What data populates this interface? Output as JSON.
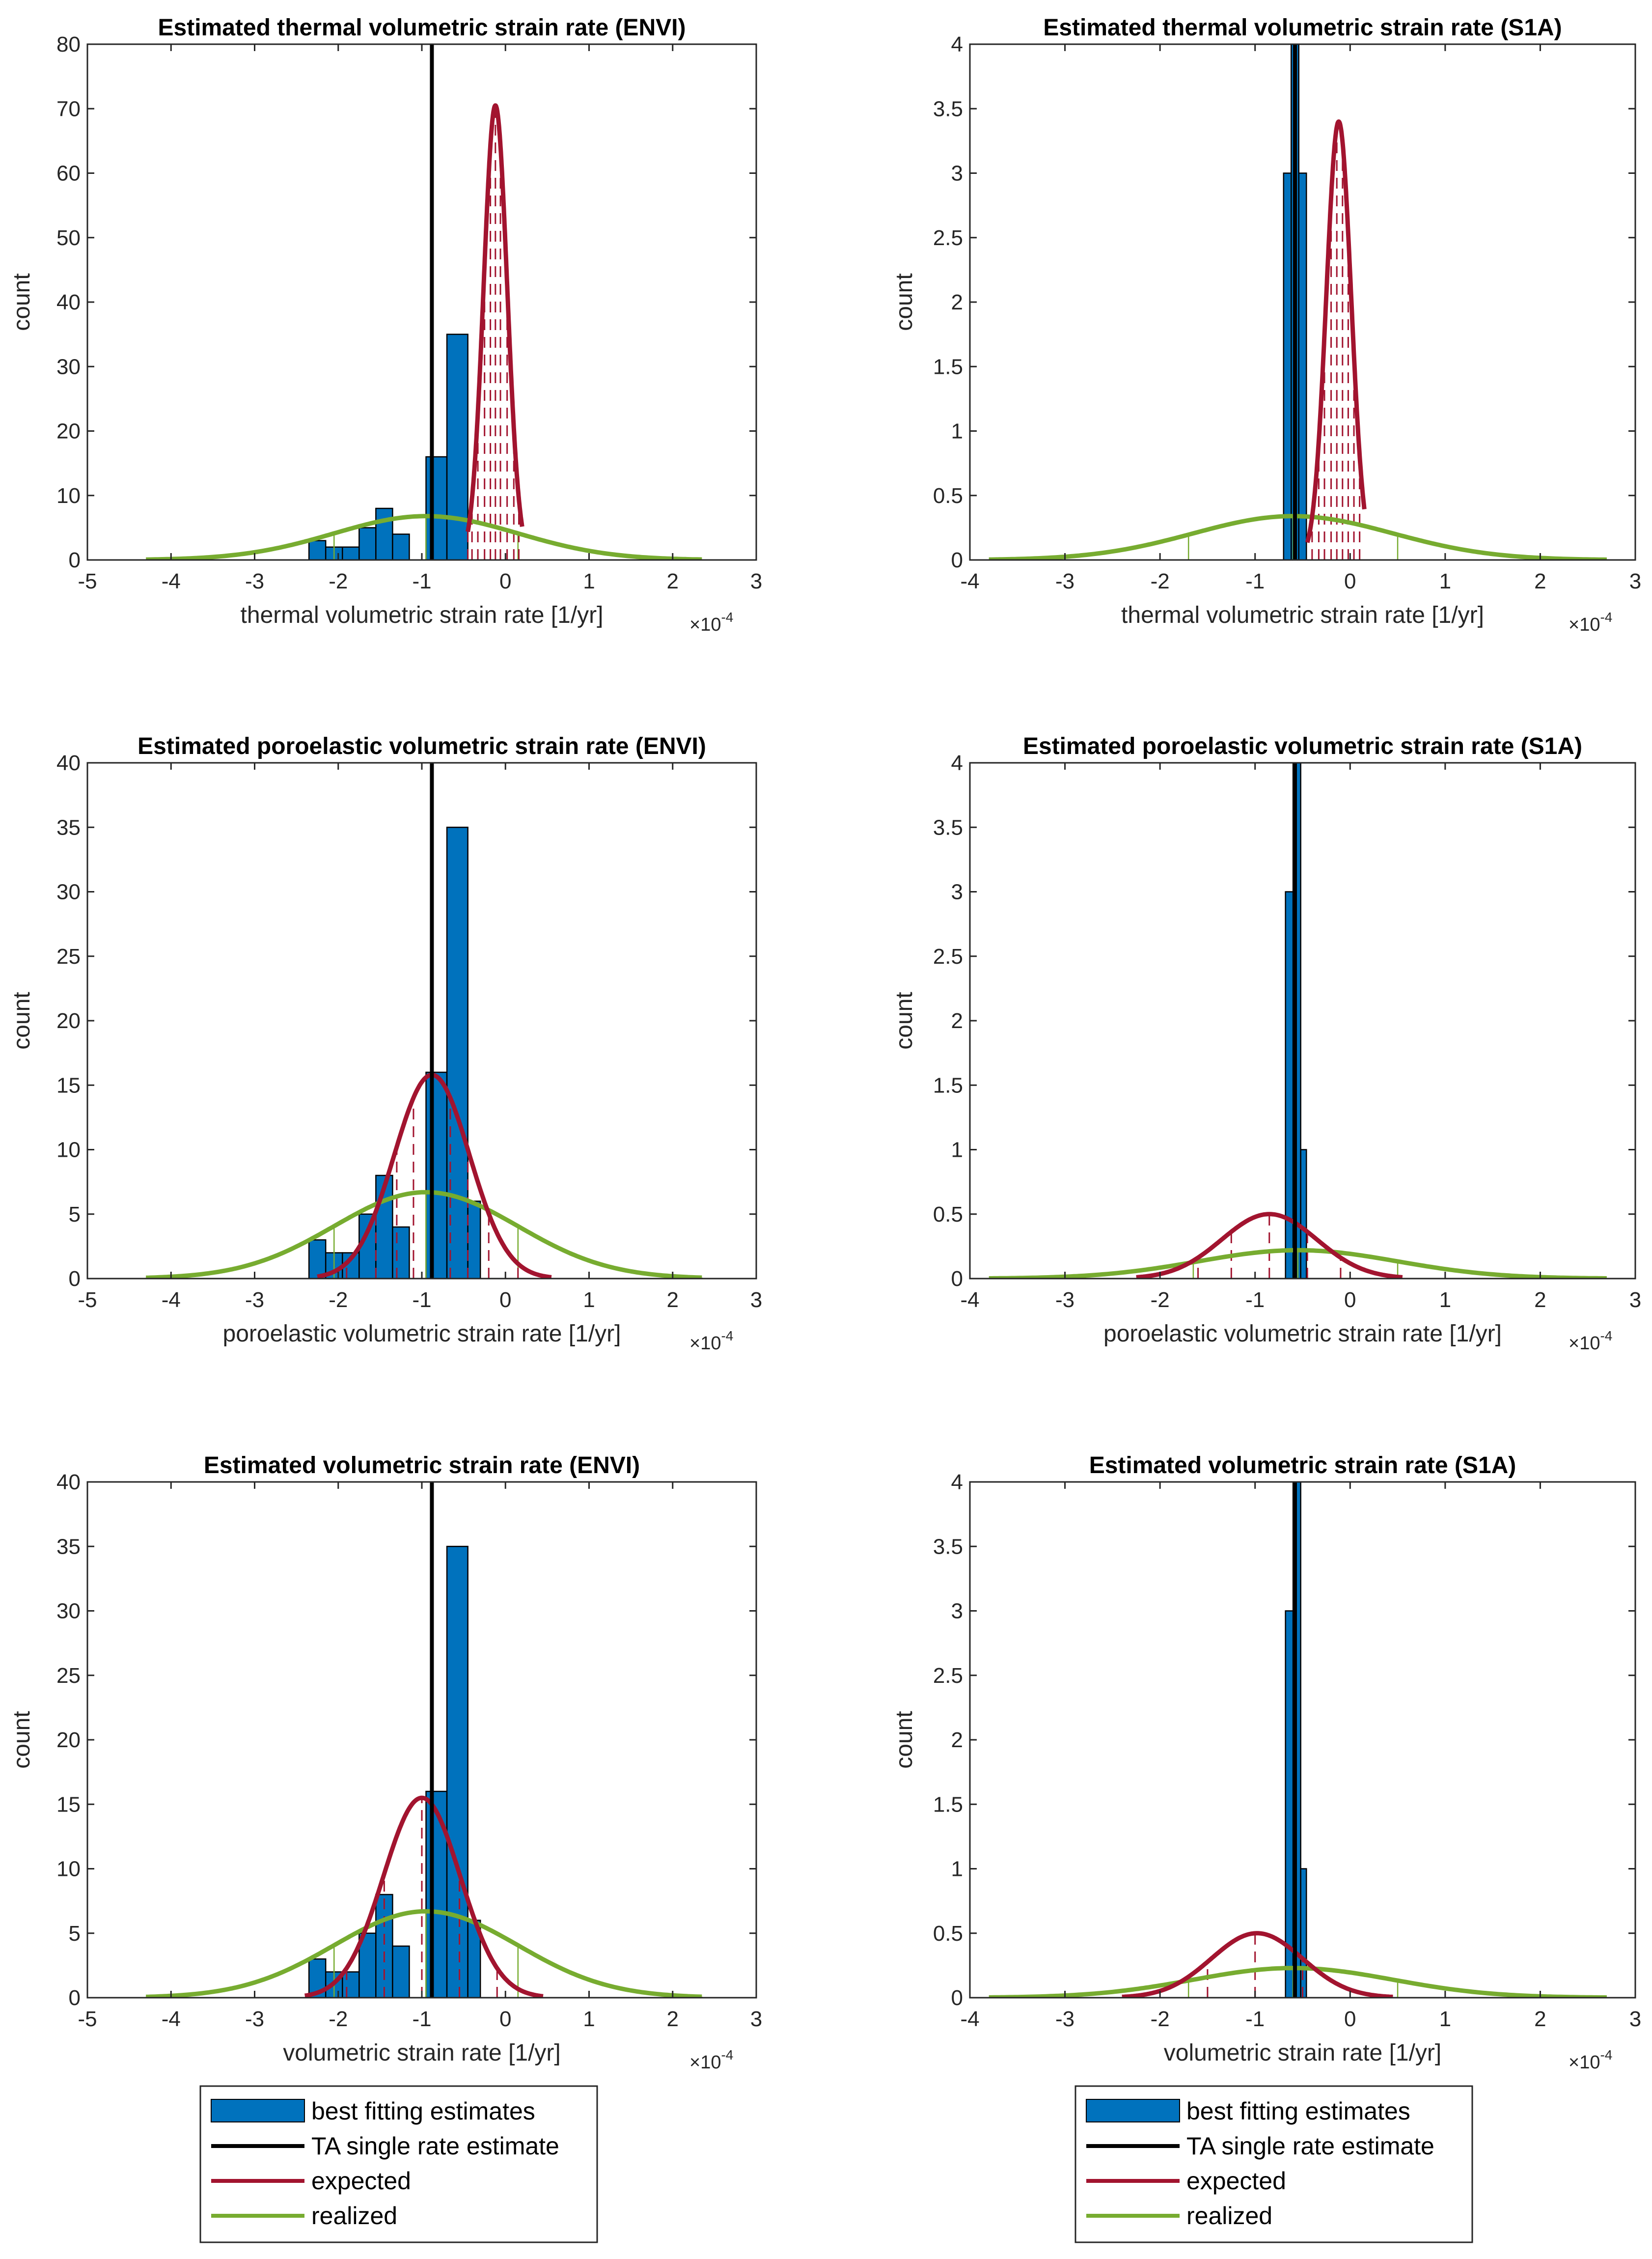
{
  "colors": {
    "histogram": "#0072BD",
    "ta_line": "#000000",
    "expected": "#A2142F",
    "realized": "#77AC30",
    "axis": "#262626"
  },
  "legend_left": {
    "items": [
      {
        "label": "best fitting estimates",
        "kind": "patch"
      },
      {
        "label": "TA single rate estimate",
        "kind": "ta"
      },
      {
        "label": "expected",
        "kind": "expected"
      },
      {
        "label": "realized",
        "kind": "realized"
      }
    ]
  },
  "legend_right": {
    "items": [
      {
        "label": "best fitting estimates",
        "kind": "patch"
      },
      {
        "label": "TA single rate estimate",
        "kind": "ta"
      },
      {
        "label": "expected",
        "kind": "expected"
      },
      {
        "label": "realized",
        "kind": "realized"
      }
    ]
  },
  "chart_data": [
    {
      "type": "bar",
      "title": "Estimated thermal volumetric strain rate (ENVI)",
      "xlabel": "thermal volumetric strain rate [1/yr]",
      "ylabel": "count",
      "x_multiplier": "×10",
      "x_exponent": "-4",
      "xlim": [
        -5,
        3
      ],
      "ylim": [
        0,
        80
      ],
      "xticks": [
        -5,
        -4,
        -3,
        -2,
        -1,
        0,
        1,
        2,
        3
      ],
      "yticks": [
        0,
        10,
        20,
        30,
        40,
        50,
        60,
        70,
        80
      ],
      "bins": [
        {
          "x0": -2.35,
          "x1": -2.15,
          "count": 3
        },
        {
          "x0": -2.15,
          "x1": -1.95,
          "count": 2
        },
        {
          "x0": -1.95,
          "x1": -1.75,
          "count": 2
        },
        {
          "x0": -1.75,
          "x1": -1.55,
          "count": 5
        },
        {
          "x0": -1.55,
          "x1": -1.35,
          "count": 8
        },
        {
          "x0": -1.35,
          "x1": -1.15,
          "count": 4
        },
        {
          "x0": -1.15,
          "x1": -0.95,
          "count": 0
        },
        {
          "x0": -0.95,
          "x1": -0.7,
          "count": 16
        },
        {
          "x0": -0.7,
          "x1": -0.45,
          "count": 35
        }
      ],
      "ta_estimate": -0.88,
      "expected": {
        "mean": -0.12,
        "std": 0.14,
        "peak": 70.5,
        "range": [
          -0.45,
          0.2
        ],
        "ticks": [
          -0.45,
          -0.4,
          -0.33,
          -0.25,
          -0.18,
          -0.12,
          -0.06,
          0.02,
          0.1,
          0.16
        ]
      },
      "realized": {
        "mean": -0.95,
        "std": 1.1,
        "peak": 6.8,
        "range": [
          -4.3,
          2.35
        ],
        "ticks": [
          -4.3,
          -2.05,
          -0.95,
          0.15,
          2.35
        ]
      }
    },
    {
      "type": "bar",
      "title": "Estimated thermal volumetric strain rate (S1A)",
      "xlabel": "thermal volumetric strain rate [1/yr]",
      "ylabel": "count",
      "x_multiplier": "×10",
      "x_exponent": "-4",
      "xlim": [
        -4,
        3
      ],
      "ylim": [
        0,
        4
      ],
      "xticks": [
        -4,
        -3,
        -2,
        -1,
        0,
        1,
        2,
        3
      ],
      "yticks": [
        0,
        0.5,
        1,
        1.5,
        2,
        2.5,
        3,
        3.5,
        4
      ],
      "bins": [
        {
          "x0": -0.7,
          "x1": -0.62,
          "count": 3
        },
        {
          "x0": -0.62,
          "x1": -0.54,
          "count": 4
        },
        {
          "x0": -0.54,
          "x1": -0.46,
          "count": 3
        }
      ],
      "ta_estimate": -0.58,
      "expected": {
        "mean": -0.12,
        "std": 0.13,
        "peak": 3.4,
        "range": [
          -0.45,
          0.15
        ],
        "ticks": [
          -0.4,
          -0.33,
          -0.27,
          -0.2,
          -0.14,
          -0.08,
          -0.02,
          0.04,
          0.1
        ]
      },
      "realized": {
        "mean": -0.6,
        "std": 1.05,
        "peak": 0.34,
        "range": [
          -3.8,
          2.7
        ],
        "ticks": [
          -3.8,
          -1.7,
          -0.6,
          0.5,
          2.7
        ]
      }
    },
    {
      "type": "bar",
      "title": "Estimated poroelastic volumetric strain rate (ENVI)",
      "xlabel": "poroelastic volumetric strain rate [1/yr]",
      "ylabel": "count",
      "x_multiplier": "×10",
      "x_exponent": "-4",
      "xlim": [
        -5,
        3
      ],
      "ylim": [
        0,
        40
      ],
      "xticks": [
        -5,
        -4,
        -3,
        -2,
        -1,
        0,
        1,
        2,
        3
      ],
      "yticks": [
        0,
        5,
        10,
        15,
        20,
        25,
        30,
        35,
        40
      ],
      "bins": [
        {
          "x0": -2.35,
          "x1": -2.15,
          "count": 3
        },
        {
          "x0": -2.15,
          "x1": -1.95,
          "count": 2
        },
        {
          "x0": -1.95,
          "x1": -1.75,
          "count": 2
        },
        {
          "x0": -1.75,
          "x1": -1.55,
          "count": 5
        },
        {
          "x0": -1.55,
          "x1": -1.35,
          "count": 8
        },
        {
          "x0": -1.35,
          "x1": -1.15,
          "count": 4
        },
        {
          "x0": -1.15,
          "x1": -0.95,
          "count": 0
        },
        {
          "x0": -0.95,
          "x1": -0.7,
          "count": 16
        },
        {
          "x0": -0.7,
          "x1": -0.45,
          "count": 35
        },
        {
          "x0": -0.45,
          "x1": -0.3,
          "count": 6
        }
      ],
      "ta_estimate": -0.88,
      "expected": {
        "mean": -0.88,
        "std": 0.45,
        "peak": 15.8,
        "range": [
          -2.25,
          0.55
        ],
        "ticks": [
          -1.9,
          -1.55,
          -1.3,
          -1.1,
          -0.88,
          -0.66,
          -0.45,
          -0.2,
          0.15
        ]
      },
      "realized": {
        "mean": -0.95,
        "std": 1.1,
        "peak": 6.7,
        "range": [
          -4.3,
          2.35
        ],
        "ticks": [
          -4.3,
          -2.05,
          -0.95,
          0.15,
          2.35
        ]
      }
    },
    {
      "type": "bar",
      "title": "Estimated poroelastic volumetric strain rate (S1A)",
      "xlabel": "poroelastic volumetric strain rate [1/yr]",
      "ylabel": "count",
      "x_multiplier": "×10",
      "x_exponent": "-4",
      "xlim": [
        -4,
        3
      ],
      "ylim": [
        0,
        4
      ],
      "xticks": [
        -4,
        -3,
        -2,
        -1,
        0,
        1,
        2,
        3
      ],
      "yticks": [
        0,
        0.5,
        1,
        1.5,
        2,
        2.5,
        3,
        3.5,
        4
      ],
      "bins": [
        {
          "x0": -0.68,
          "x1": -0.6,
          "count": 3
        },
        {
          "x0": -0.6,
          "x1": -0.52,
          "count": 4
        },
        {
          "x0": -0.52,
          "x1": -0.46,
          "count": 1
        }
      ],
      "ta_estimate": -0.58,
      "expected": {
        "mean": -0.85,
        "std": 0.5,
        "peak": 0.5,
        "range": [
          -2.25,
          0.55
        ],
        "ticks": [
          -1.6,
          -1.25,
          -0.85,
          -0.45,
          -0.1
        ]
      },
      "realized": {
        "mean": -0.55,
        "std": 1.05,
        "peak": 0.22,
        "range": [
          -3.8,
          2.7
        ],
        "ticks": [
          -3.8,
          -1.65,
          -0.55,
          0.5,
          2.7
        ]
      }
    },
    {
      "type": "bar",
      "title": "Estimated volumetric strain rate (ENVI)",
      "xlabel": "volumetric strain rate [1/yr]",
      "ylabel": "count",
      "x_multiplier": "×10",
      "x_exponent": "-4",
      "xlim": [
        -5,
        3
      ],
      "ylim": [
        0,
        40
      ],
      "xticks": [
        -5,
        -4,
        -3,
        -2,
        -1,
        0,
        1,
        2,
        3
      ],
      "yticks": [
        0,
        5,
        10,
        15,
        20,
        25,
        30,
        35,
        40
      ],
      "bins": [
        {
          "x0": -2.35,
          "x1": -2.15,
          "count": 3
        },
        {
          "x0": -2.15,
          "x1": -1.95,
          "count": 2
        },
        {
          "x0": -1.95,
          "x1": -1.75,
          "count": 2
        },
        {
          "x0": -1.75,
          "x1": -1.55,
          "count": 5
        },
        {
          "x0": -1.55,
          "x1": -1.35,
          "count": 8
        },
        {
          "x0": -1.35,
          "x1": -1.15,
          "count": 4
        },
        {
          "x0": -1.15,
          "x1": -0.95,
          "count": 0
        },
        {
          "x0": -0.95,
          "x1": -0.7,
          "count": 16
        },
        {
          "x0": -0.7,
          "x1": -0.45,
          "count": 35
        },
        {
          "x0": -0.45,
          "x1": -0.3,
          "count": 6
        }
      ],
      "ta_estimate": -0.88,
      "expected": {
        "mean": -1.0,
        "std": 0.46,
        "peak": 15.5,
        "range": [
          -2.4,
          0.45
        ],
        "ticks": [
          -1.9,
          -1.45,
          -1.0,
          -0.55,
          -0.1
        ]
      },
      "realized": {
        "mean": -0.95,
        "std": 1.1,
        "peak": 6.7,
        "range": [
          -4.3,
          2.35
        ],
        "ticks": [
          -4.3,
          -2.05,
          -0.95,
          0.15,
          2.35
        ]
      }
    },
    {
      "type": "bar",
      "title": "Estimated volumetric strain rate (S1A)",
      "xlabel": "volumetric strain rate [1/yr]",
      "ylabel": "count",
      "x_multiplier": "×10",
      "x_exponent": "-4",
      "xlim": [
        -4,
        3
      ],
      "ylim": [
        0,
        4
      ],
      "xticks": [
        -4,
        -3,
        -2,
        -1,
        0,
        1,
        2,
        3
      ],
      "yticks": [
        0,
        0.5,
        1,
        1.5,
        2,
        2.5,
        3,
        3.5,
        4
      ],
      "bins": [
        {
          "x0": -0.68,
          "x1": -0.6,
          "count": 3
        },
        {
          "x0": -0.6,
          "x1": -0.52,
          "count": 4
        },
        {
          "x0": -0.52,
          "x1": -0.46,
          "count": 1
        }
      ],
      "ta_estimate": -0.58,
      "expected": {
        "mean": -0.98,
        "std": 0.48,
        "peak": 0.5,
        "range": [
          -2.4,
          0.45
        ],
        "ticks": [
          -1.5,
          -1.0,
          -0.5
        ]
      },
      "realized": {
        "mean": -0.6,
        "std": 1.05,
        "peak": 0.23,
        "range": [
          -3.8,
          2.7
        ],
        "ticks": [
          -3.8,
          -1.7,
          -0.6,
          0.5,
          2.7
        ]
      }
    }
  ]
}
